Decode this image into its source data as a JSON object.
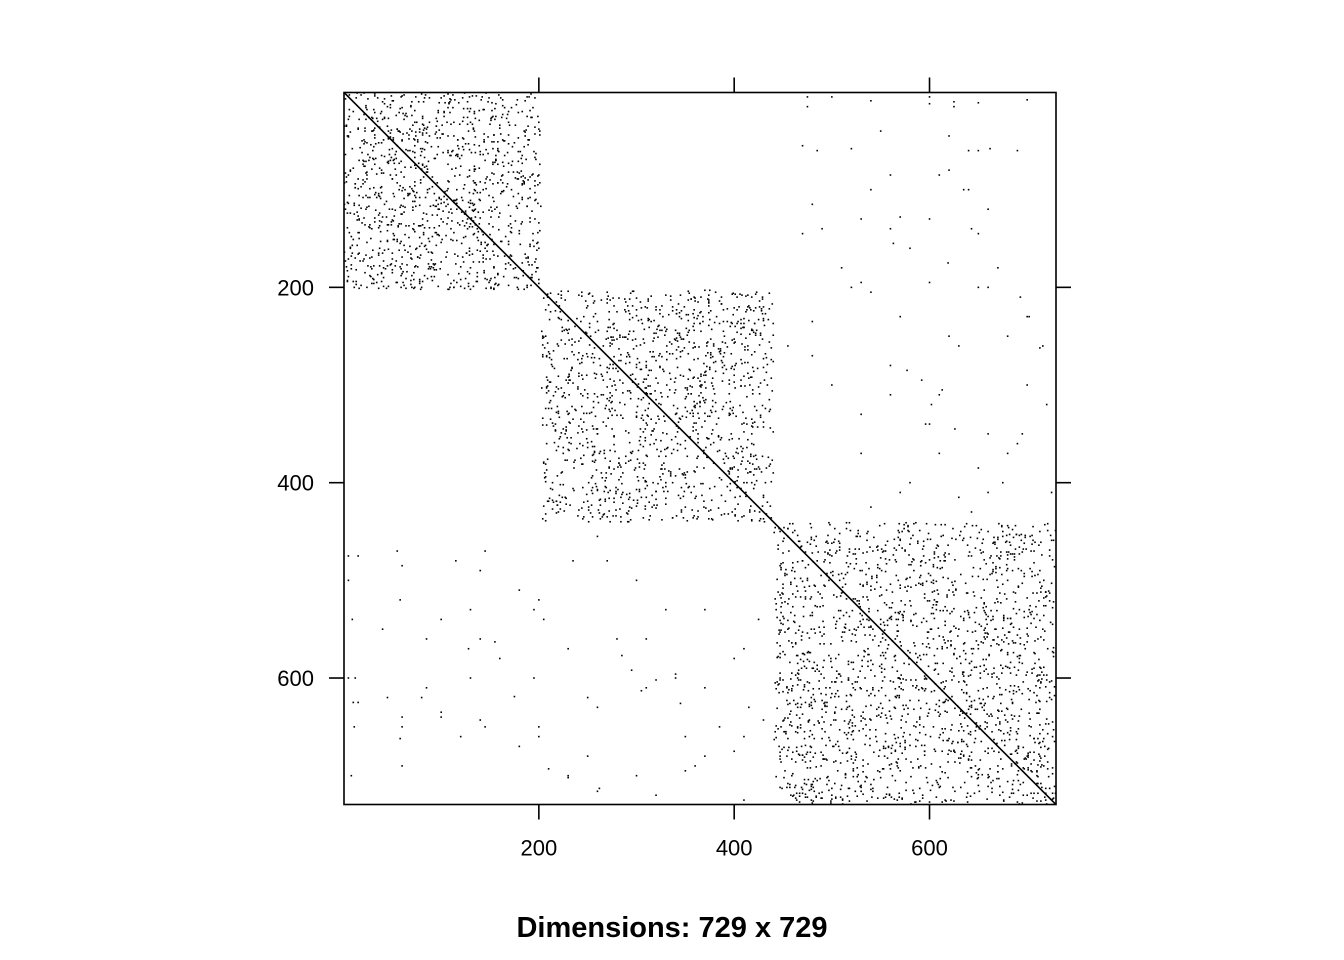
{
  "chart_data": {
    "type": "scatter",
    "subtype": "sparse-matrix-pattern",
    "title": "",
    "xlabel": "Dimensions: 729 x 729",
    "ylabel": "",
    "dimensions": [
      729,
      729
    ],
    "xlim": [
      0.5,
      729.5
    ],
    "ylim": [
      729.5,
      0.5
    ],
    "y_axis_inverted": true,
    "x_ticks_bottom": [
      200,
      400,
      600
    ],
    "x_ticks_top_marks": [
      200,
      400,
      600
    ],
    "y_ticks_left": [
      200,
      400,
      600
    ],
    "y_ticks_right_marks": [
      200,
      400,
      600
    ],
    "tick_labels_x": [
      "200",
      "400",
      "600"
    ],
    "tick_labels_y": [
      "200",
      "400",
      "600"
    ],
    "diagonal": "full",
    "dense_blocks": [
      {
        "row_range": [
          1,
          202
        ],
        "col_range": [
          1,
          202
        ],
        "approx_points": 1150
      },
      {
        "row_range": [
          203,
          440
        ],
        "col_range": [
          203,
          440
        ],
        "approx_points": 1350
      },
      {
        "row_range": [
          441,
          729
        ],
        "col_range": [
          441,
          729
        ],
        "approx_points": 2000
      }
    ],
    "sparse_offblock_points": [
      [
        9,
        540
      ],
      [
        12,
        600
      ],
      [
        10,
        625
      ],
      [
        11,
        650
      ],
      [
        55,
        470
      ],
      [
        60,
        485
      ],
      [
        58,
        662
      ],
      [
        100,
        635
      ],
      [
        128,
        570
      ],
      [
        130,
        530
      ],
      [
        145,
        650
      ],
      [
        180,
        510
      ],
      [
        205,
        540
      ],
      [
        210,
        693
      ],
      [
        230,
        570
      ],
      [
        260,
        630
      ],
      [
        295,
        592
      ],
      [
        305,
        613
      ],
      [
        260,
        716
      ],
      [
        330,
        530
      ],
      [
        340,
        596
      ],
      [
        350,
        695
      ],
      [
        285,
        577
      ],
      [
        320,
        602
      ],
      [
        350,
        660
      ],
      [
        345,
        626
      ],
      [
        370,
        610
      ],
      [
        415,
        630
      ],
      [
        430,
        643
      ],
      [
        410,
        570
      ],
      [
        447,
        515
      ],
      [
        445,
        578
      ],
      [
        450,
        537
      ],
      [
        195,
        600
      ],
      [
        155,
        563
      ],
      [
        100,
        540
      ],
      [
        115,
        480
      ],
      [
        140,
        643
      ],
      [
        180,
        670
      ],
      [
        200,
        660
      ],
      [
        250,
        680
      ],
      [
        130,
        600
      ],
      [
        230,
        702
      ],
      [
        262,
        713
      ],
      [
        300,
        700
      ],
      [
        370,
        680
      ],
      [
        280,
        560
      ],
      [
        60,
        640
      ],
      [
        85,
        610
      ],
      [
        175,
        619
      ],
      [
        475,
        15
      ],
      [
        500,
        5
      ],
      [
        520,
        58
      ],
      [
        550,
        40
      ],
      [
        600,
        5
      ],
      [
        620,
        45
      ],
      [
        650,
        60
      ],
      [
        620,
        80
      ],
      [
        640,
        100
      ],
      [
        690,
        60
      ],
      [
        660,
        120
      ],
      [
        520,
        200
      ],
      [
        480,
        270
      ],
      [
        500,
        300
      ],
      [
        560,
        310
      ],
      [
        620,
        250
      ],
      [
        650,
        200
      ],
      [
        700,
        230
      ],
      [
        690,
        360
      ],
      [
        720,
        320
      ],
      [
        600,
        340
      ],
      [
        580,
        400
      ],
      [
        660,
        410
      ],
      [
        530,
        370
      ],
      [
        480,
        235
      ],
      [
        560,
        140
      ],
      [
        490,
        140
      ],
      [
        580,
        160
      ],
      [
        470,
        145
      ],
      [
        700,
        8
      ],
      [
        625,
        15
      ],
      [
        560,
        85
      ],
      [
        530,
        195
      ],
      [
        610,
        310
      ],
      [
        675,
        400
      ],
      [
        725,
        410
      ],
      [
        475,
        5
      ],
      [
        455,
        260
      ],
      [
        500,
        475
      ],
      [
        470,
        575
      ],
      [
        650,
        385
      ],
      [
        540,
        425
      ]
    ]
  }
}
